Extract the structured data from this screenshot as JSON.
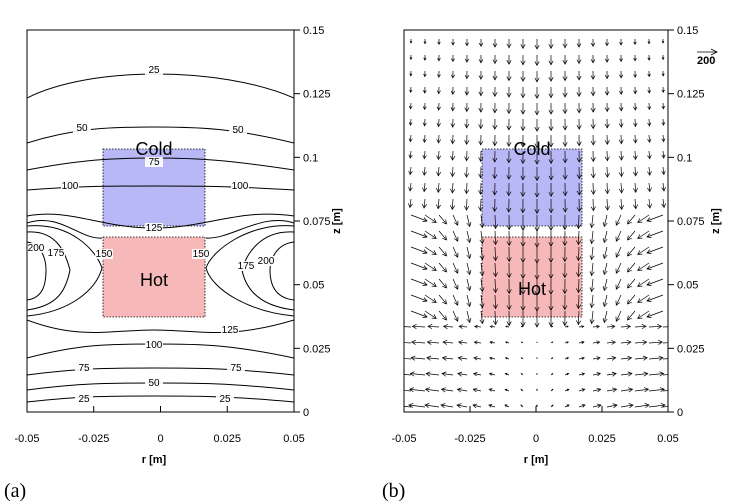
{
  "panels": {
    "a": {
      "label": "(a)"
    },
    "b": {
      "label": "(b)"
    }
  },
  "regions": {
    "cold_label": "Cold",
    "hot_label": "Hot"
  },
  "colors": {
    "cold_fill": "#b8b8f6",
    "hot_fill": "#f6b8b8",
    "line": "#000000"
  },
  "vector_scale": {
    "label": "200"
  },
  "chart_data": [
    {
      "type": "contour",
      "panel": "(a)",
      "xlabel": "r [m]",
      "ylabel": "z [m]",
      "xlim": [
        -0.05,
        0.05
      ],
      "ylim": [
        0,
        0.15
      ],
      "xticks": [
        "-0.05",
        "-0.025",
        "0",
        "0.025",
        "0.05"
      ],
      "yticks": [
        "0",
        "0.025",
        "0.05",
        "0.075",
        "0.1",
        "0.125",
        "0.15"
      ],
      "contour_levels": [
        25,
        50,
        75,
        100,
        125,
        150,
        175,
        200
      ],
      "regions": [
        {
          "name": "Cold",
          "r": [
            -0.02,
            0.02
          ],
          "z": [
            0.075,
            0.105
          ]
        },
        {
          "name": "Hot",
          "r": [
            -0.02,
            0.02
          ],
          "z": [
            0.037,
            0.07
          ]
        }
      ]
    },
    {
      "type": "vector",
      "panel": "(b)",
      "xlabel": "r [m]",
      "ylabel": "z [m]",
      "xlim": [
        -0.05,
        0.05
      ],
      "ylim": [
        0,
        0.15
      ],
      "xticks": [
        "-0.05",
        "-0.025",
        "0",
        "0.025",
        "0.05"
      ],
      "yticks": [
        "0",
        "0.025",
        "0.05",
        "0.075",
        "0.1",
        "0.125",
        "0.15"
      ],
      "reference_vector": 200,
      "regions": [
        {
          "name": "Cold",
          "r": [
            -0.02,
            0.02
          ],
          "z": [
            0.075,
            0.105
          ]
        },
        {
          "name": "Hot",
          "r": [
            -0.02,
            0.02
          ],
          "z": [
            0.037,
            0.07
          ]
        }
      ]
    }
  ]
}
